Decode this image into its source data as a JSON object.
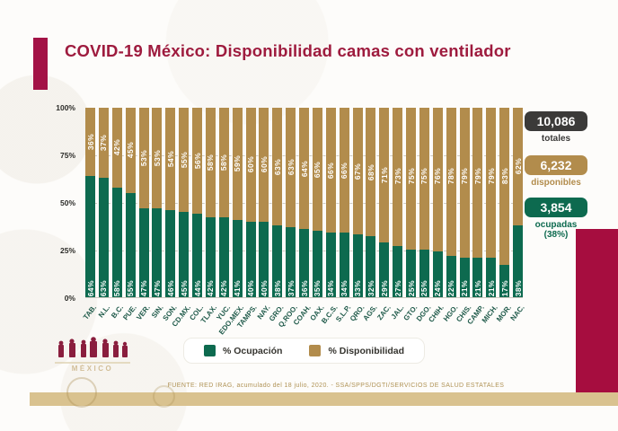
{
  "title": "COVID-19 México: Disponibilidad camas con ventilador",
  "stats": {
    "totales": {
      "value": "10,086",
      "label": "totales"
    },
    "disponibles": {
      "value": "6,232",
      "label": "disponibles"
    },
    "ocupadas": {
      "value": "3,854",
      "label": "ocupadas",
      "sublabel": "(38%)"
    }
  },
  "legend": {
    "ocupacion": "% Ocupación",
    "disponibilidad": "% Disponibilidad"
  },
  "footer": "FUENTE: RED IRAG, acumulado del 18 julio, 2020. - SSA/SPPS/DGTI/SERVICIOS DE SALUD ESTATALES",
  "logo": {
    "wordmark": "MÉXICO"
  },
  "colors": {
    "title_crimson": "#9e1b3e",
    "accent_crimson": "#a31246",
    "block_crimson": "#a60d3f",
    "occupied_green": "#0d6a4f",
    "available_tan": "#b28c4c",
    "bottom_strip_tan": "#d9c28f",
    "stats_dark": "#3b3a39"
  },
  "chart_data": {
    "type": "bar",
    "stacked": true,
    "units": "percent",
    "title": "COVID-19 México: Disponibilidad camas con ventilador",
    "categories": [
      "TAB.",
      "N.L.",
      "B.C.",
      "PUE.",
      "VER.",
      "SIN.",
      "SON.",
      "CD.MX.",
      "COL.",
      "TLAX.",
      "YUC.",
      "EDO.MEX.",
      "TAMPS.",
      "NAY.",
      "GRO.",
      "Q.ROO.",
      "COAH.",
      "OAX.",
      "B.C.S.",
      "S.L.P.",
      "QRO.",
      "AGS.",
      "ZAC.",
      "JAL.",
      "GTO.",
      "DGO.",
      "CHIH.",
      "HGO.",
      "CHIS.",
      "CAMP.",
      "MICH.",
      "MOR.",
      "NAC."
    ],
    "series": [
      {
        "name": "% Ocupación",
        "color": "#0d6a4f",
        "values": [
          64,
          63,
          58,
          55,
          47,
          47,
          46,
          45,
          44,
          42,
          42,
          41,
          40,
          40,
          38,
          37,
          36,
          35,
          34,
          34,
          33,
          32,
          29,
          27,
          25,
          25,
          24,
          22,
          21,
          21,
          21,
          17,
          38
        ]
      },
      {
        "name": "% Disponibilidad",
        "color": "#b28c4c",
        "values": [
          36,
          37,
          42,
          45,
          53,
          53,
          54,
          55,
          56,
          58,
          58,
          59,
          60,
          60,
          63,
          63,
          64,
          65,
          66,
          66,
          67,
          68,
          71,
          73,
          75,
          75,
          76,
          78,
          79,
          79,
          79,
          83,
          62
        ]
      }
    ],
    "xlabel": "",
    "ylabel": "",
    "ylim": [
      0,
      100
    ],
    "yticks": [
      "100%",
      "75%",
      "50%",
      "25%",
      "0%"
    ],
    "grid": "horizontal-dashed",
    "legend_position": "bottom"
  }
}
